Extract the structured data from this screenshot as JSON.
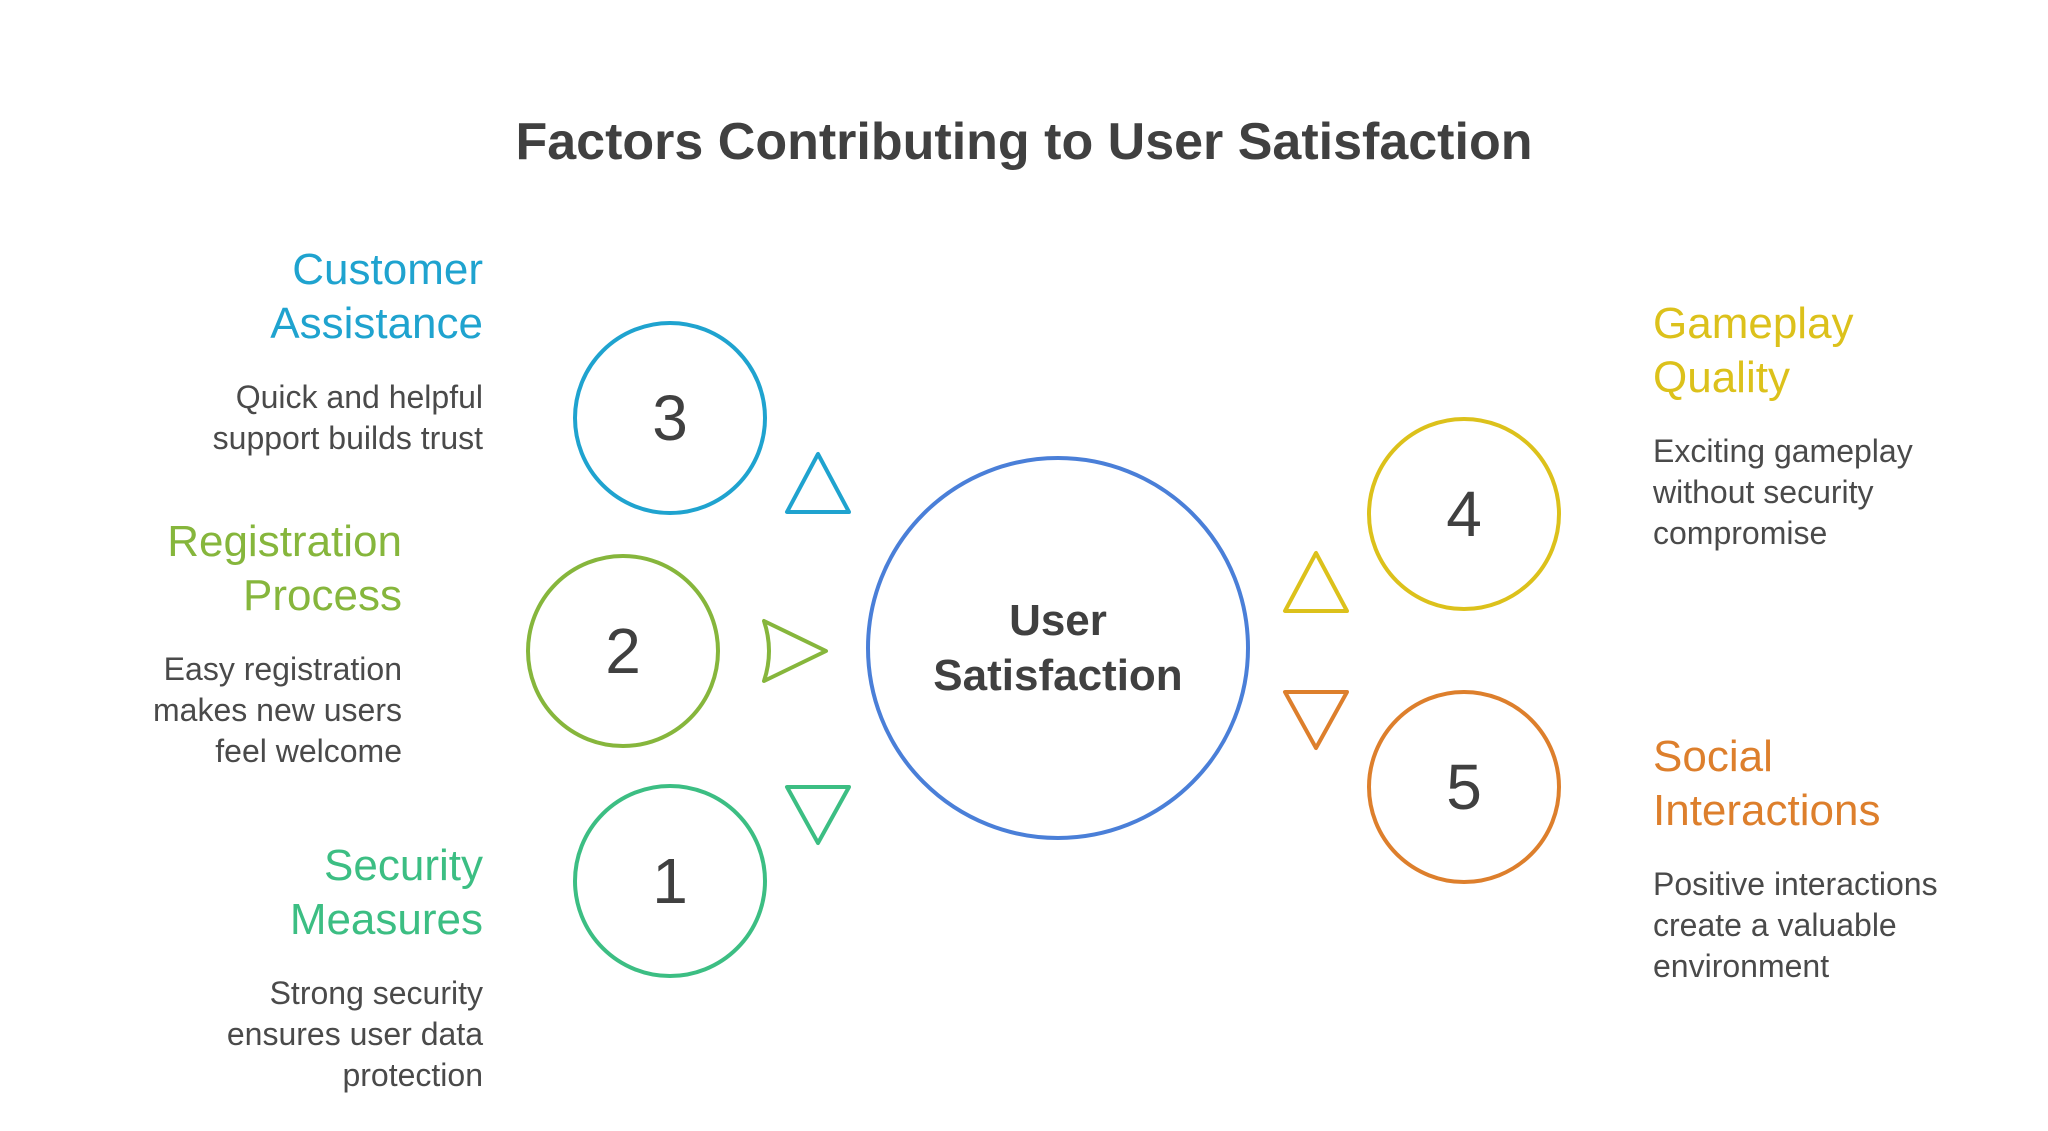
{
  "title": "Factors Contributing to User Satisfaction",
  "center": {
    "label_line1": "User",
    "label_line2": "Satisfaction",
    "color": "#4a7fd8"
  },
  "factors": [
    {
      "number": "1",
      "heading_line1": "Security",
      "heading_line2": "Measures",
      "desc_line1": "Strong security",
      "desc_line2": "ensures user data",
      "desc_line3": "protection",
      "color": "#3cbe83"
    },
    {
      "number": "2",
      "heading_line1": "Registration",
      "heading_line2": "Process",
      "desc_line1": "Easy registration",
      "desc_line2": "makes new users",
      "desc_line3": "feel welcome",
      "color": "#86b63c"
    },
    {
      "number": "3",
      "heading_line1": "Customer",
      "heading_line2": "Assistance",
      "desc_line1": "Quick and helpful",
      "desc_line2": "support builds trust",
      "color": "#1fa3cf"
    },
    {
      "number": "4",
      "heading_line1": "Gameplay",
      "heading_line2": "Quality",
      "desc_line1": "Exciting gameplay",
      "desc_line2": "without security",
      "desc_line3": "compromise",
      "color": "#dcc11b"
    },
    {
      "number": "5",
      "heading_line1": "Social",
      "heading_line2": "Interactions",
      "desc_line1": "Positive interactions",
      "desc_line2": "create a valuable",
      "desc_line3": "environment",
      "color": "#dd7f2c"
    }
  ]
}
